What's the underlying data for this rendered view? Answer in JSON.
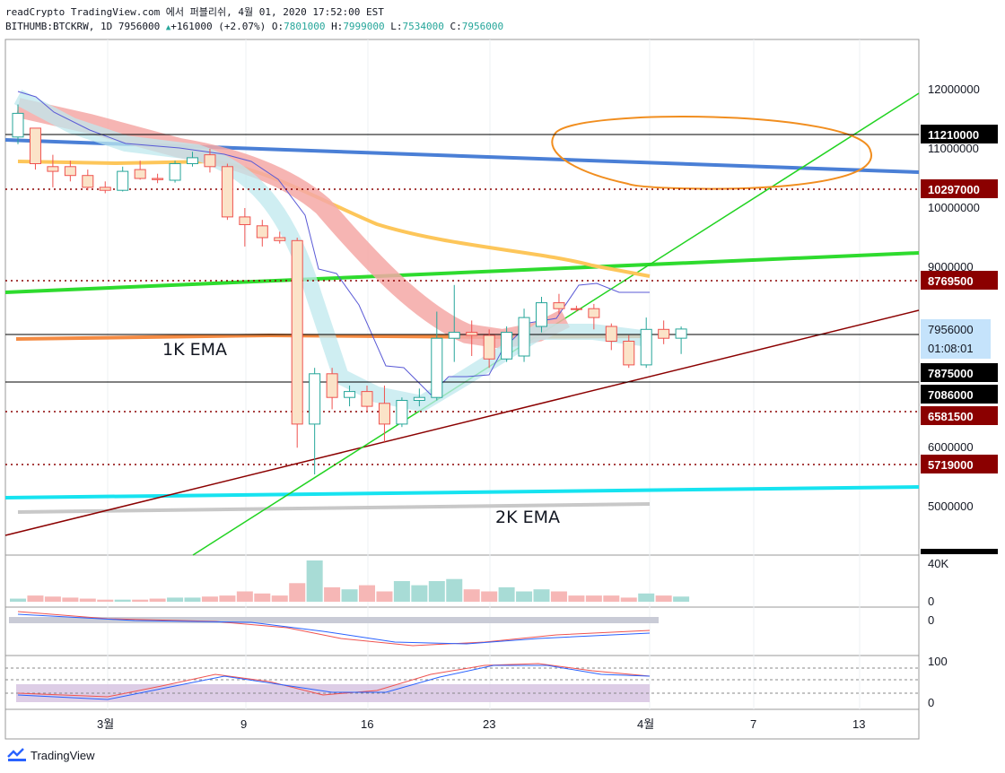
{
  "header": {
    "line1": "readCrypto TradingView.com 에서 퍼블리쉬, 4월 01, 2020 17:52:00 EST",
    "symbol": "BITHUMB:BTCKRW, 1D 7956000",
    "change": "+161000 (+2.07%)",
    "o_label": "O:",
    "o_value": "7801000",
    "h_label": "H:",
    "h_value": "7999000",
    "l_label": "L:",
    "l_value": "7534000",
    "c_label": "C:",
    "c_value": "7956000"
  },
  "price_axis": {
    "ticks": [
      "12000000",
      "11000000",
      "10000000",
      "9000000",
      "6000000",
      "5000000"
    ],
    "badges": [
      {
        "text": "11210000",
        "style": "black"
      },
      {
        "text": "10297000",
        "style": "red"
      },
      {
        "text": "8769500",
        "style": "red"
      },
      {
        "text": "7956000",
        "style": "blue"
      },
      {
        "text": "01:08:01",
        "style": "blue"
      },
      {
        "text": "7875000",
        "style": "black"
      },
      {
        "text": "7086000",
        "style": "black"
      },
      {
        "text": "6581500",
        "style": "red"
      },
      {
        "text": "5719000",
        "style": "red"
      }
    ]
  },
  "time_axis": [
    "3월",
    "9",
    "16",
    "23",
    "4월",
    "7",
    "13"
  ],
  "annotations": [
    "1K EMA",
    "2K EMA"
  ],
  "volume_axis": [
    "40K",
    "0"
  ],
  "macd_axis": [
    "0"
  ],
  "rsi_axis": [
    "100",
    "0"
  ],
  "footer": {
    "brand": "TradingView"
  },
  "colors": {
    "up": "#26a69a",
    "down": "#ef5350",
    "badge_red": "#8b0000",
    "badge_blue": "#c5e3fb"
  },
  "chart_data": {
    "type": "candlestick",
    "candles": [
      {
        "o": 11200000,
        "h": 11750000,
        "l": 11080000,
        "c": 11600000
      },
      {
        "o": 11350000,
        "h": 11350000,
        "l": 10650000,
        "c": 10750000
      },
      {
        "o": 10700000,
        "h": 10900000,
        "l": 10350000,
        "c": 10620000
      },
      {
        "o": 10700000,
        "h": 10800000,
        "l": 10450000,
        "c": 10550000
      },
      {
        "o": 10550000,
        "h": 10650000,
        "l": 10300000,
        "c": 10350000
      },
      {
        "o": 10350000,
        "h": 10450000,
        "l": 10250000,
        "c": 10300000
      },
      {
        "o": 10300000,
        "h": 10700000,
        "l": 10280000,
        "c": 10620000
      },
      {
        "o": 10650000,
        "h": 10800000,
        "l": 10480000,
        "c": 10500000
      },
      {
        "o": 10500000,
        "h": 10580000,
        "l": 10420000,
        "c": 10480000
      },
      {
        "o": 10470000,
        "h": 10800000,
        "l": 10430000,
        "c": 10750000
      },
      {
        "o": 10750000,
        "h": 10950000,
        "l": 10700000,
        "c": 10850000
      },
      {
        "o": 10900000,
        "h": 11000000,
        "l": 10600000,
        "c": 10700000
      },
      {
        "o": 10700000,
        "h": 10750000,
        "l": 9800000,
        "c": 9850000
      },
      {
        "o": 9850000,
        "h": 10000000,
        "l": 9350000,
        "c": 9720000
      },
      {
        "o": 9700000,
        "h": 9800000,
        "l": 9350000,
        "c": 9500000
      },
      {
        "o": 9500000,
        "h": 9600000,
        "l": 9400000,
        "c": 9450000
      },
      {
        "o": 9450000,
        "h": 9500000,
        "l": 5950000,
        "c": 6350000
      },
      {
        "o": 6350000,
        "h": 7300000,
        "l": 5500000,
        "c": 7200000
      },
      {
        "o": 7200000,
        "h": 7300000,
        "l": 6600000,
        "c": 6800000
      },
      {
        "o": 6800000,
        "h": 7000000,
        "l": 6650000,
        "c": 6900000
      },
      {
        "o": 6900000,
        "h": 7000000,
        "l": 6550000,
        "c": 6650000
      },
      {
        "o": 6700000,
        "h": 7000000,
        "l": 6050000,
        "c": 6350000
      },
      {
        "o": 6350000,
        "h": 6800000,
        "l": 6300000,
        "c": 6750000
      },
      {
        "o": 6750000,
        "h": 6950000,
        "l": 6650000,
        "c": 6800000
      },
      {
        "o": 6800000,
        "h": 8250000,
        "l": 6750000,
        "c": 7800000
      },
      {
        "o": 7800000,
        "h": 8700000,
        "l": 7400000,
        "c": 7900000
      },
      {
        "o": 7900000,
        "h": 8100000,
        "l": 7500000,
        "c": 7850000
      },
      {
        "o": 7850000,
        "h": 7950000,
        "l": 7300000,
        "c": 7450000
      },
      {
        "o": 7450000,
        "h": 8000000,
        "l": 7400000,
        "c": 7900000
      },
      {
        "o": 7500000,
        "h": 8300000,
        "l": 7400000,
        "c": 8150000
      },
      {
        "o": 8000000,
        "h": 8500000,
        "l": 7900000,
        "c": 8400000
      },
      {
        "o": 8400000,
        "h": 8550000,
        "l": 8200000,
        "c": 8300000
      },
      {
        "o": 8300000,
        "h": 8350000,
        "l": 8250000,
        "c": 8290000
      },
      {
        "o": 8300000,
        "h": 8380000,
        "l": 7950000,
        "c": 8150000
      },
      {
        "o": 8000000,
        "h": 8050000,
        "l": 7600000,
        "c": 7750000
      },
      {
        "o": 7750000,
        "h": 7850000,
        "l": 7300000,
        "c": 7350000
      },
      {
        "o": 7350000,
        "h": 8150000,
        "l": 7300000,
        "c": 7950000
      },
      {
        "o": 7950000,
        "h": 8100000,
        "l": 7700000,
        "c": 7800000
      },
      {
        "o": 7801000,
        "h": 7999000,
        "l": 7534000,
        "c": 7956000
      }
    ],
    "volume": [
      3,
      6,
      5,
      4,
      3,
      2,
      2,
      2,
      3,
      4,
      4,
      5,
      6,
      10,
      8,
      6,
      18,
      40,
      14,
      12,
      16,
      10,
      20,
      16,
      20,
      22,
      12,
      10,
      14,
      10,
      12,
      10,
      6,
      6,
      6,
      4,
      8,
      6,
      5
    ],
    "ylim": [
      4200000,
      12500000
    ]
  }
}
